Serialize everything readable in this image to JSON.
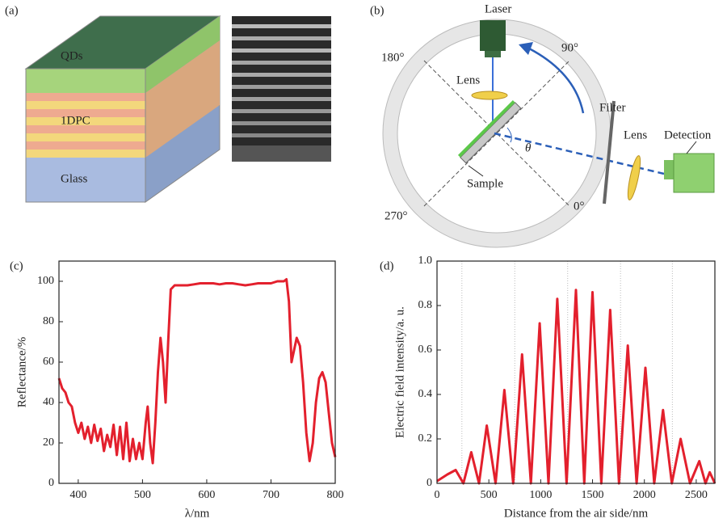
{
  "panel_a": {
    "label": "(a)",
    "layers": [
      "QDs",
      "1DPC",
      "Glass"
    ]
  },
  "panel_b": {
    "label": "(b)",
    "laser": "Laser",
    "lens_1": "Lens",
    "filter": "Filter",
    "lens_2": "Lens",
    "detection": "Detection",
    "sample": "Sample",
    "angle": "θ",
    "deg_180": "180°",
    "deg_90": "90°",
    "deg_270": "270°",
    "deg_0": "0°"
  },
  "chart_data": [
    {
      "type": "line",
      "label": "(c)",
      "xlabel": "λ/nm",
      "ylabel": "Reflectance/%",
      "color": "#e3202d",
      "xlim": [
        370,
        800
      ],
      "ylim": [
        0,
        110
      ],
      "xticks": [
        400,
        500,
        600,
        700,
        800
      ],
      "yticks": [
        0,
        20,
        40,
        60,
        80,
        100
      ],
      "x": [
        370,
        375,
        380,
        385,
        390,
        395,
        400,
        405,
        410,
        415,
        420,
        425,
        430,
        435,
        440,
        445,
        450,
        455,
        460,
        465,
        470,
        475,
        480,
        485,
        490,
        495,
        500,
        505,
        508,
        512,
        516,
        520,
        524,
        528,
        532,
        536,
        540,
        544,
        550,
        560,
        570,
        580,
        590,
        600,
        610,
        620,
        630,
        640,
        650,
        660,
        670,
        680,
        690,
        700,
        710,
        720,
        724,
        728,
        732,
        736,
        740,
        745,
        750,
        755,
        760,
        765,
        770,
        775,
        780,
        785,
        790,
        795,
        800
      ],
      "values": [
        52,
        47,
        45,
        40,
        38,
        30,
        25,
        30,
        22,
        28,
        20,
        29,
        21,
        27,
        16,
        24,
        18,
        29,
        14,
        28,
        12,
        30,
        11,
        22,
        12,
        20,
        12,
        30,
        38,
        20,
        10,
        30,
        55,
        72,
        60,
        40,
        70,
        96,
        98,
        98,
        98,
        98.5,
        99,
        99,
        99,
        98.5,
        99,
        99,
        98.5,
        98,
        98.5,
        99,
        99,
        99,
        100,
        100,
        101,
        90,
        60,
        66,
        72,
        68,
        50,
        25,
        11,
        20,
        40,
        52,
        55,
        50,
        35,
        20,
        13
      ]
    },
    {
      "type": "line",
      "label": "(d)",
      "xlabel": "Distance from the air side/nm",
      "ylabel": "Electric field intensity/a. u.",
      "color": "#e3202d",
      "xlim": [
        0,
        2680
      ],
      "ylim": [
        0,
        1
      ],
      "xticks": [
        0,
        500,
        1000,
        1500,
        2000,
        2500
      ],
      "yticks": [
        0,
        0.2,
        0.4,
        0.6,
        0.8,
        {
          "value": 1,
          "label": "1.0"
        }
      ],
      "reference_lines": [
        240,
        750,
        1260,
        1770,
        2270
      ],
      "x": [
        0,
        100,
        180,
        255,
        330,
        405,
        480,
        565,
        650,
        735,
        820,
        905,
        990,
        1075,
        1160,
        1250,
        1340,
        1420,
        1500,
        1585,
        1670,
        1755,
        1840,
        1925,
        2010,
        2095,
        2180,
        2265,
        2350,
        2440,
        2530,
        2590,
        2630,
        2680
      ],
      "values": [
        0.01,
        0.04,
        0.06,
        0,
        0.14,
        0,
        0.26,
        0,
        0.42,
        0,
        0.58,
        0,
        0.72,
        0,
        0.83,
        0,
        0.87,
        0,
        0.86,
        0,
        0.78,
        0,
        0.62,
        0,
        0.52,
        0,
        0.33,
        0,
        0.2,
        0,
        0.1,
        0,
        0.05,
        0
      ]
    }
  ]
}
